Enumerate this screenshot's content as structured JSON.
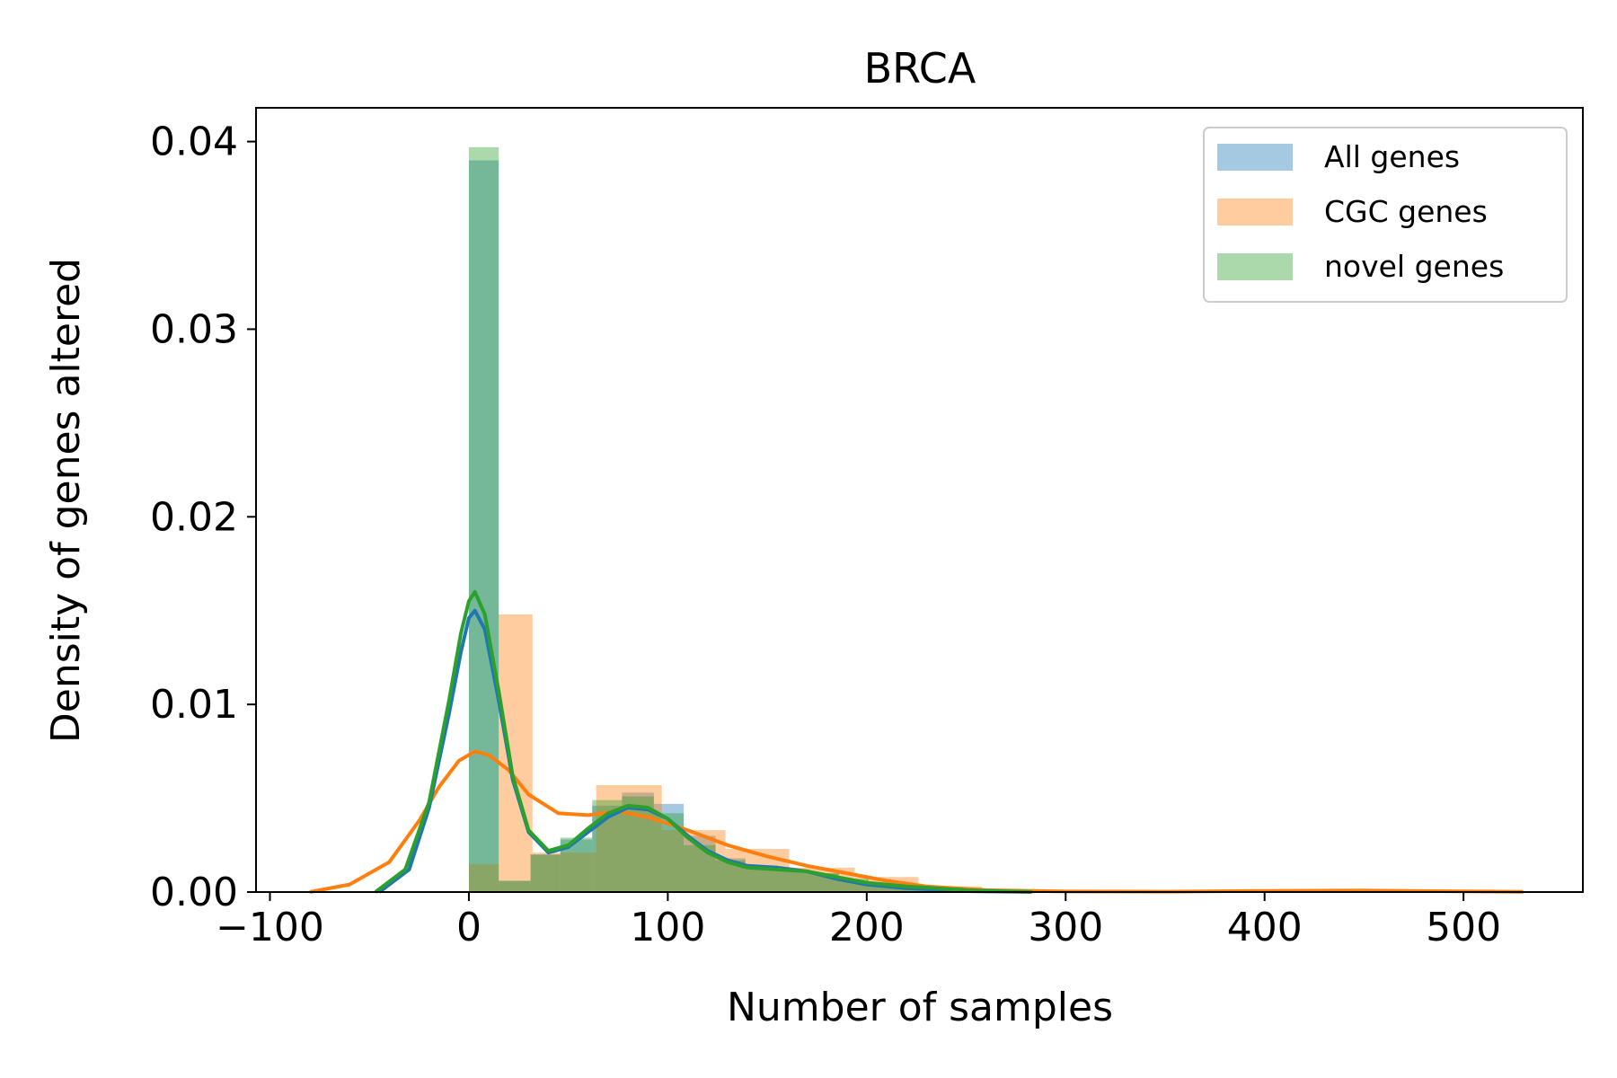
{
  "chart_data": {
    "type": "histogram-kde",
    "title": "BRCA",
    "xlabel": "Number of samples",
    "ylabel": "Density of genes altered",
    "xlim": [
      -107,
      560
    ],
    "ylim": [
      0,
      0.0418
    ],
    "xticks": [
      -100,
      0,
      100,
      200,
      300,
      400,
      500
    ],
    "xtick_labels": [
      "−100",
      "0",
      "100",
      "200",
      "300",
      "400",
      "500"
    ],
    "yticks": [
      0.0,
      0.01,
      0.02,
      0.03,
      0.04
    ],
    "ytick_labels": [
      "0.00",
      "0.01",
      "0.02",
      "0.03",
      "0.04"
    ],
    "grid": false,
    "legend_position": "top-right",
    "series": [
      {
        "name": "All genes",
        "color": "#1f77b4",
        "bins": [
          [
            0,
            15,
            0.039
          ],
          [
            15,
            31,
            0.0006
          ],
          [
            31,
            46,
            0.002
          ],
          [
            46,
            62,
            0.0028
          ],
          [
            62,
            77,
            0.0046
          ],
          [
            77,
            93,
            0.0053
          ],
          [
            93,
            108,
            0.0047
          ],
          [
            108,
            124,
            0.003
          ],
          [
            124,
            139,
            0.0018
          ],
          [
            139,
            155,
            0.0014
          ],
          [
            155,
            170,
            0.0012
          ],
          [
            170,
            186,
            0.001
          ],
          [
            186,
            201,
            0.0006
          ],
          [
            201,
            217,
            0.0004
          ],
          [
            217,
            232,
            0.0003
          ],
          [
            232,
            248,
            0.0002
          ],
          [
            248,
            263,
            0.0001
          ],
          [
            263,
            279,
            5e-05
          ]
        ],
        "kde": [
          [
            -45,
            0.0
          ],
          [
            -30,
            0.0012
          ],
          [
            -20,
            0.0045
          ],
          [
            -10,
            0.0095
          ],
          [
            -4,
            0.0128
          ],
          [
            0,
            0.0146
          ],
          [
            3,
            0.015
          ],
          [
            8,
            0.014
          ],
          [
            15,
            0.0102
          ],
          [
            22,
            0.006
          ],
          [
            30,
            0.0032
          ],
          [
            40,
            0.0021
          ],
          [
            50,
            0.0024
          ],
          [
            60,
            0.0032
          ],
          [
            70,
            0.004
          ],
          [
            80,
            0.0045
          ],
          [
            90,
            0.0044
          ],
          [
            100,
            0.0039
          ],
          [
            110,
            0.003
          ],
          [
            120,
            0.0022
          ],
          [
            130,
            0.0017
          ],
          [
            140,
            0.0014
          ],
          [
            155,
            0.0013
          ],
          [
            170,
            0.0011
          ],
          [
            185,
            0.0007
          ],
          [
            200,
            0.0004
          ],
          [
            220,
            0.0002
          ],
          [
            250,
            5e-05
          ],
          [
            283,
            0.0
          ]
        ]
      },
      {
        "name": "CGC genes",
        "color": "#ff7f0e",
        "bins": [
          [
            0,
            15,
            0.0015
          ],
          [
            15,
            32,
            0.0148
          ],
          [
            32,
            64,
            0.0021
          ],
          [
            64,
            97,
            0.0057
          ],
          [
            97,
            129,
            0.0033
          ],
          [
            129,
            161,
            0.0023
          ],
          [
            161,
            194,
            0.0013
          ],
          [
            194,
            226,
            0.0008
          ],
          [
            226,
            258,
            0.0003
          ],
          [
            258,
            291,
            0.0001
          ],
          [
            291,
            323,
            5e-05
          ],
          [
            323,
            355,
            0.0
          ],
          [
            355,
            388,
            0.0
          ],
          [
            388,
            420,
            5e-05
          ],
          [
            420,
            452,
            0.0
          ],
          [
            452,
            485,
            0.0
          ],
          [
            485,
            517,
            5e-05
          ],
          [
            517,
            530,
            0.0
          ]
        ],
        "kde": [
          [
            -80,
            0.0
          ],
          [
            -60,
            0.0004
          ],
          [
            -40,
            0.0016
          ],
          [
            -25,
            0.0038
          ],
          [
            -15,
            0.0056
          ],
          [
            -5,
            0.007
          ],
          [
            3,
            0.0075
          ],
          [
            10,
            0.0073
          ],
          [
            20,
            0.0065
          ],
          [
            30,
            0.0052
          ],
          [
            45,
            0.0042
          ],
          [
            60,
            0.0041
          ],
          [
            75,
            0.0043
          ],
          [
            90,
            0.004
          ],
          [
            110,
            0.0033
          ],
          [
            130,
            0.0025
          ],
          [
            150,
            0.0019
          ],
          [
            170,
            0.0014
          ],
          [
            190,
            0.001
          ],
          [
            210,
            0.0006
          ],
          [
            230,
            0.0003
          ],
          [
            260,
            0.0001
          ],
          [
            300,
            3e-05
          ],
          [
            350,
            2e-05
          ],
          [
            400,
            6e-05
          ],
          [
            450,
            8e-05
          ],
          [
            500,
            4e-05
          ],
          [
            530,
            1e-05
          ]
        ]
      },
      {
        "name": "novel genes",
        "color": "#2ca02c",
        "bins": [
          [
            0,
            15,
            0.0397
          ],
          [
            15,
            31,
            0.0006
          ],
          [
            31,
            46,
            0.002
          ],
          [
            46,
            62,
            0.0029
          ],
          [
            62,
            77,
            0.0049
          ],
          [
            77,
            93,
            0.0051
          ],
          [
            93,
            108,
            0.0042
          ],
          [
            108,
            124,
            0.0025
          ],
          [
            124,
            139,
            0.0017
          ],
          [
            139,
            155,
            0.0013
          ],
          [
            155,
            170,
            0.0012
          ],
          [
            170,
            186,
            0.001
          ],
          [
            186,
            201,
            0.0007
          ],
          [
            201,
            217,
            0.0005
          ],
          [
            217,
            232,
            0.0003
          ],
          [
            232,
            248,
            0.0002
          ],
          [
            248,
            263,
            0.0001
          ],
          [
            263,
            279,
            5e-05
          ]
        ],
        "kde": [
          [
            -47,
            0.0
          ],
          [
            -32,
            0.0012
          ],
          [
            -20,
            0.0048
          ],
          [
            -10,
            0.0102
          ],
          [
            -4,
            0.0138
          ],
          [
            0,
            0.0155
          ],
          [
            3,
            0.016
          ],
          [
            8,
            0.0148
          ],
          [
            15,
            0.0107
          ],
          [
            22,
            0.0062
          ],
          [
            30,
            0.0033
          ],
          [
            40,
            0.0022
          ],
          [
            50,
            0.0025
          ],
          [
            60,
            0.0034
          ],
          [
            70,
            0.0042
          ],
          [
            80,
            0.0046
          ],
          [
            90,
            0.0045
          ],
          [
            100,
            0.0039
          ],
          [
            110,
            0.0029
          ],
          [
            120,
            0.0021
          ],
          [
            130,
            0.0016
          ],
          [
            140,
            0.0013
          ],
          [
            155,
            0.0012
          ],
          [
            170,
            0.0011
          ],
          [
            185,
            0.0008
          ],
          [
            200,
            0.0005
          ],
          [
            220,
            0.0003
          ],
          [
            250,
            0.0001
          ],
          [
            283,
            0.0
          ]
        ]
      }
    ]
  }
}
